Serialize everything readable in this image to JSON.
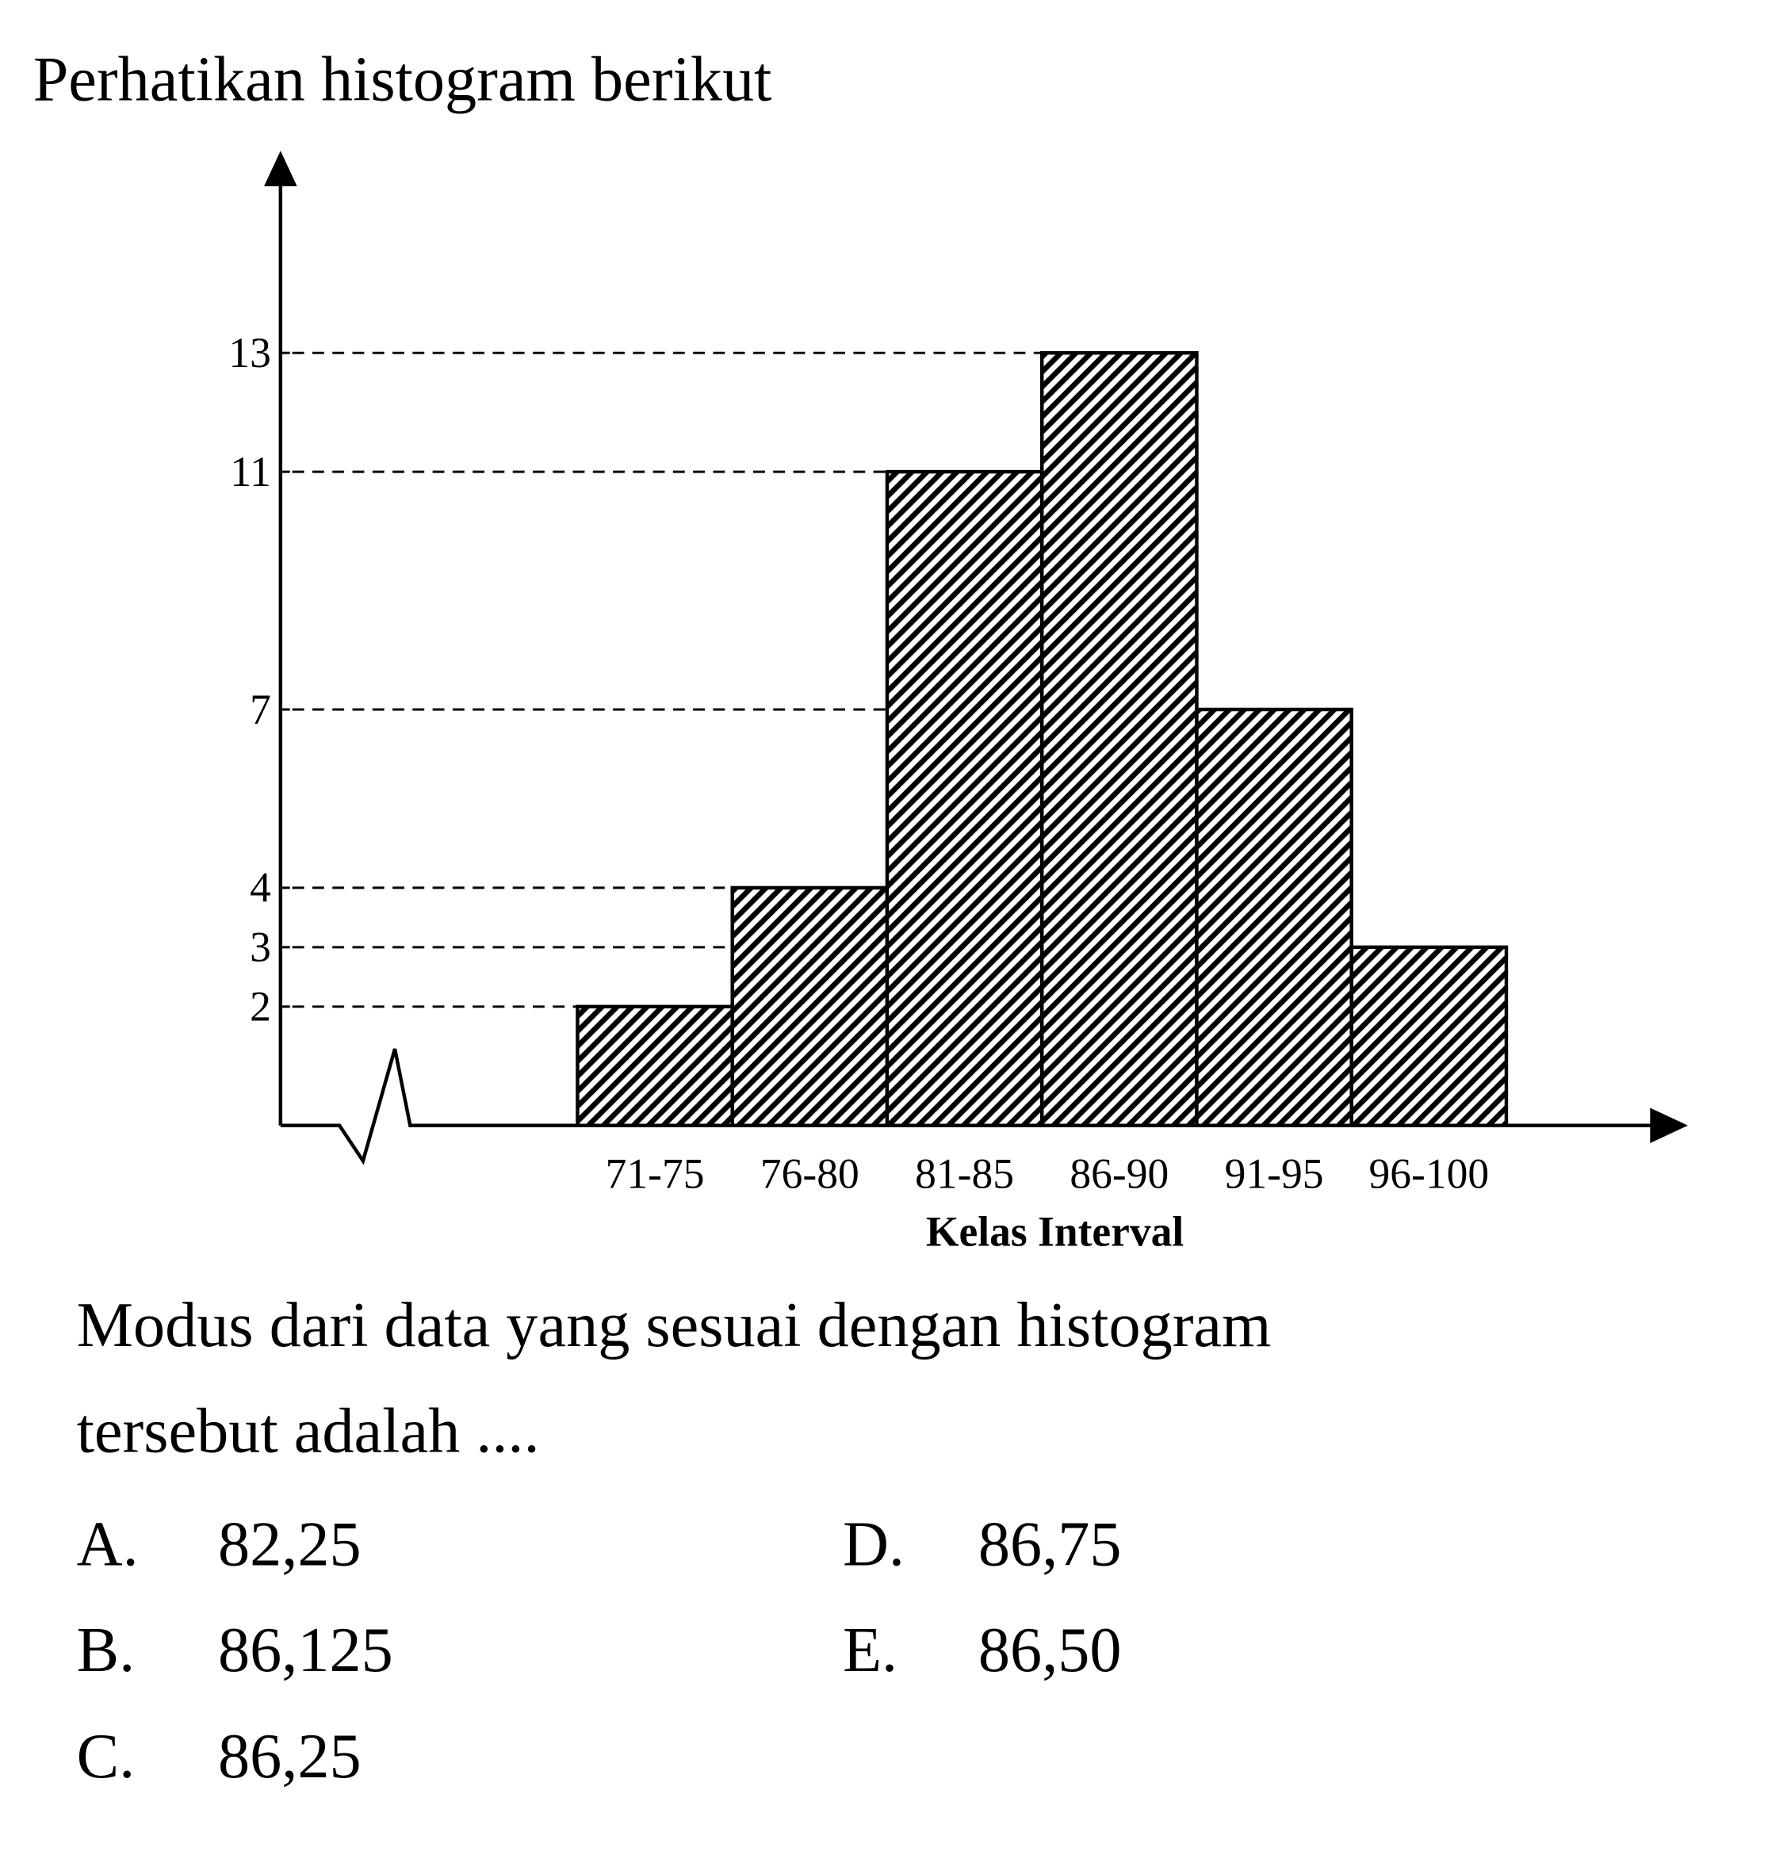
{
  "title": "Perhatikan histogram berikut",
  "chart_data": {
    "type": "bar",
    "xlabel": "Kelas Interval",
    "categories": [
      "71-75",
      "76-80",
      "81-85",
      "86-90",
      "91-95",
      "96-100"
    ],
    "values": [
      2,
      4,
      11,
      13,
      7,
      3
    ],
    "ylim": [
      0,
      16.4
    ],
    "yticks": [
      2,
      3,
      4,
      7,
      11,
      13
    ],
    "grid": true,
    "color": "#000000"
  },
  "question": [
    "Modus dari data yang sesuai dengan histogram",
    "tersebut adalah ...."
  ],
  "options": [
    {
      "letter": "A.",
      "text": "82,25"
    },
    {
      "letter": "B.",
      "text": "86,125"
    },
    {
      "letter": "C.",
      "text": "86,25"
    },
    {
      "letter": "D.",
      "text": "86,75"
    },
    {
      "letter": "E.",
      "text": "86,50"
    }
  ]
}
